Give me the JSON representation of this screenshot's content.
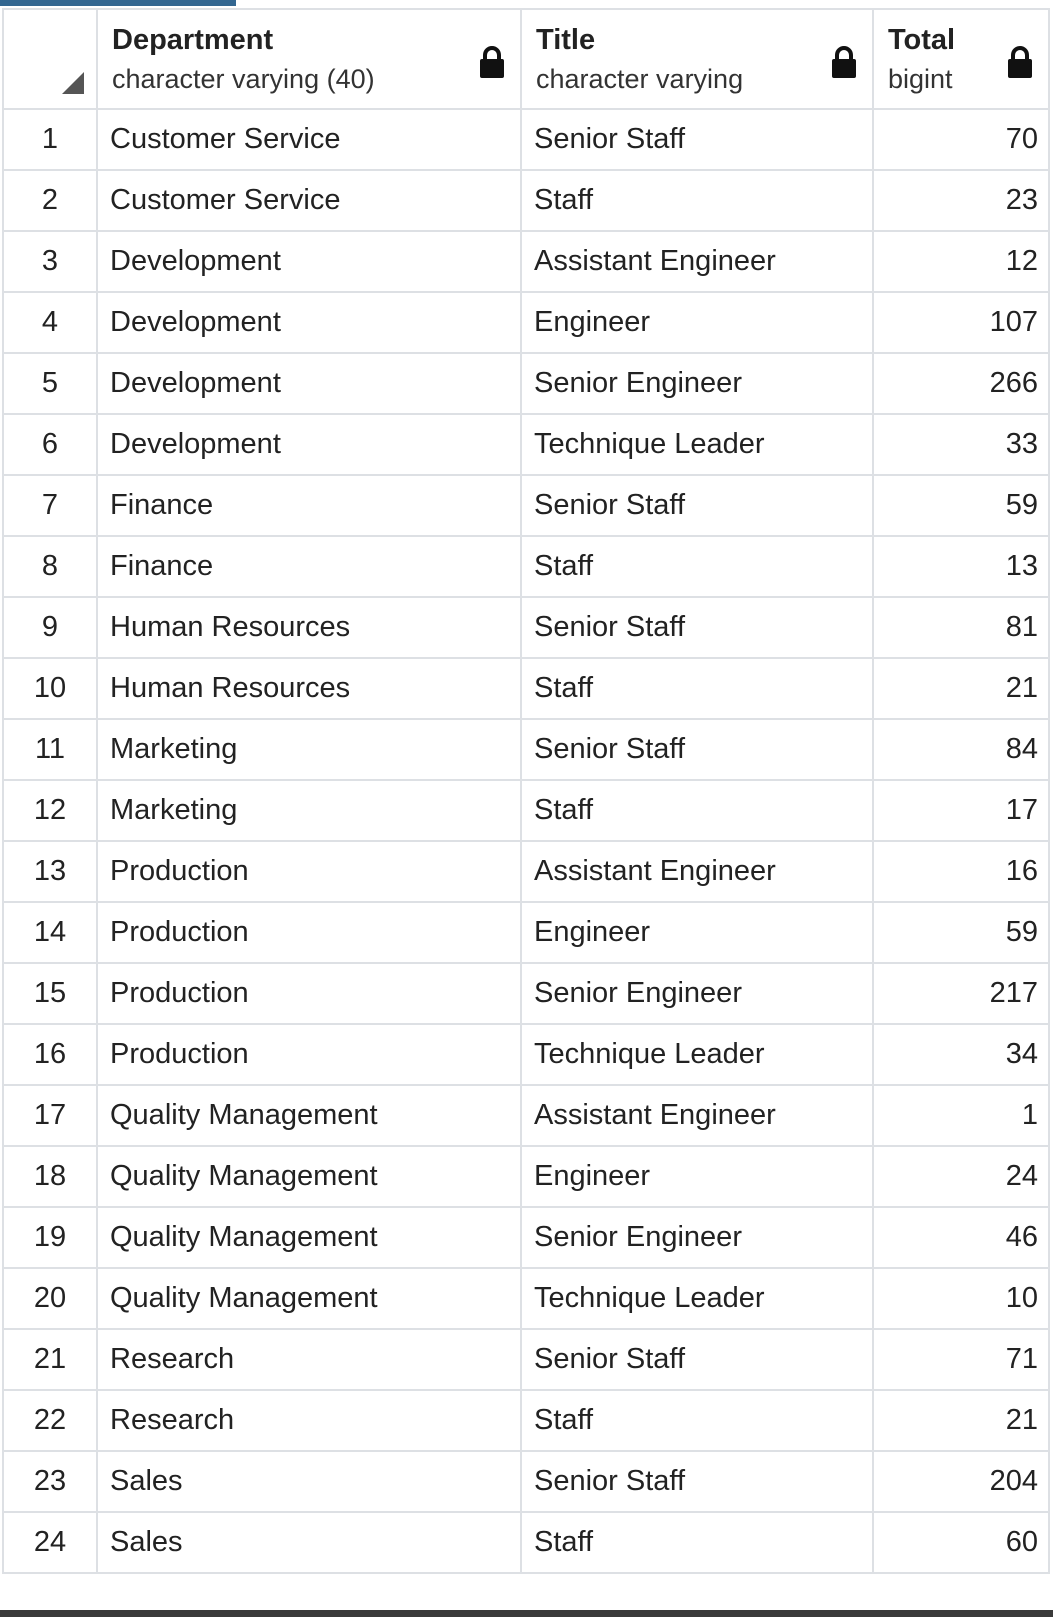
{
  "columns": [
    {
      "name": "Department",
      "type": "character varying (40)",
      "locked": true
    },
    {
      "name": "Title",
      "type": "character varying",
      "locked": true
    },
    {
      "name": "Total",
      "type": "bigint",
      "locked": true
    }
  ],
  "rows": [
    {
      "n": "1",
      "department": "Customer Service",
      "title": "Senior Staff",
      "total": "70"
    },
    {
      "n": "2",
      "department": "Customer Service",
      "title": "Staff",
      "total": "23"
    },
    {
      "n": "3",
      "department": "Development",
      "title": "Assistant Engineer",
      "total": "12"
    },
    {
      "n": "4",
      "department": "Development",
      "title": "Engineer",
      "total": "107"
    },
    {
      "n": "5",
      "department": "Development",
      "title": "Senior Engineer",
      "total": "266"
    },
    {
      "n": "6",
      "department": "Development",
      "title": "Technique Leader",
      "total": "33"
    },
    {
      "n": "7",
      "department": "Finance",
      "title": "Senior Staff",
      "total": "59"
    },
    {
      "n": "8",
      "department": "Finance",
      "title": "Staff",
      "total": "13"
    },
    {
      "n": "9",
      "department": "Human Resources",
      "title": "Senior Staff",
      "total": "81"
    },
    {
      "n": "10",
      "department": "Human Resources",
      "title": "Staff",
      "total": "21"
    },
    {
      "n": "11",
      "department": "Marketing",
      "title": "Senior Staff",
      "total": "84"
    },
    {
      "n": "12",
      "department": "Marketing",
      "title": "Staff",
      "total": "17"
    },
    {
      "n": "13",
      "department": "Production",
      "title": "Assistant Engineer",
      "total": "16"
    },
    {
      "n": "14",
      "department": "Production",
      "title": "Engineer",
      "total": "59"
    },
    {
      "n": "15",
      "department": "Production",
      "title": "Senior Engineer",
      "total": "217"
    },
    {
      "n": "16",
      "department": "Production",
      "title": "Technique Leader",
      "total": "34"
    },
    {
      "n": "17",
      "department": "Quality Management",
      "title": "Assistant Engineer",
      "total": "1"
    },
    {
      "n": "18",
      "department": "Quality Management",
      "title": "Engineer",
      "total": "24"
    },
    {
      "n": "19",
      "department": "Quality Management",
      "title": "Senior Engineer",
      "total": "46"
    },
    {
      "n": "20",
      "department": "Quality Management",
      "title": "Technique Leader",
      "total": "10"
    },
    {
      "n": "21",
      "department": "Research",
      "title": "Senior Staff",
      "total": "71"
    },
    {
      "n": "22",
      "department": "Research",
      "title": "Staff",
      "total": "21"
    },
    {
      "n": "23",
      "department": "Sales",
      "title": "Senior Staff",
      "total": "204"
    },
    {
      "n": "24",
      "department": "Sales",
      "title": "Staff",
      "total": "60"
    }
  ],
  "colors": {
    "accent": "#326690",
    "grid_line": "#dde0e4",
    "text": "#222222"
  }
}
